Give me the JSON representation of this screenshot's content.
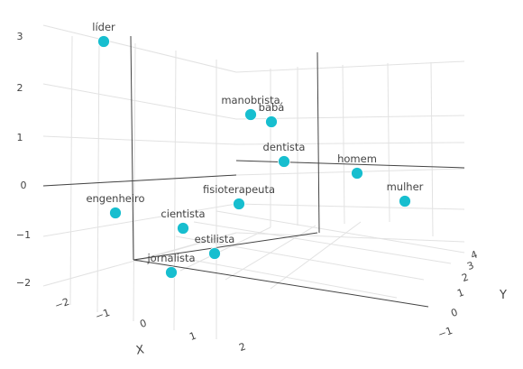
{
  "chart_data": {
    "type": "scatter",
    "subtype": "scatter3d",
    "title": "",
    "grid": true,
    "axes": {
      "x": {
        "title": "X",
        "tick_labels": [
          "−2",
          "−1",
          "0",
          "1",
          "2"
        ]
      },
      "y": {
        "title": "Y",
        "tick_labels": [
          "−1",
          "0",
          "1",
          "2",
          "3",
          "4"
        ]
      },
      "z": {
        "title": "",
        "tick_labels": [
          "−2",
          "−1",
          "0",
          "1",
          "2",
          "3"
        ]
      }
    },
    "colors": {
      "marker": "#17becf",
      "marker_edge": "#ffffff",
      "grid": "#e2e2e2",
      "axis_line": "#444444",
      "text": "#444444"
    },
    "points": [
      {
        "label": "líder"
      },
      {
        "label": "manobrista"
      },
      {
        "label": "babá"
      },
      {
        "label": "dentista"
      },
      {
        "label": "homem"
      },
      {
        "label": "mulher"
      },
      {
        "label": "engenheiro"
      },
      {
        "label": "fisioterapeuta"
      },
      {
        "label": "cientista"
      },
      {
        "label": "estilista"
      },
      {
        "label": "jornalista"
      }
    ]
  }
}
